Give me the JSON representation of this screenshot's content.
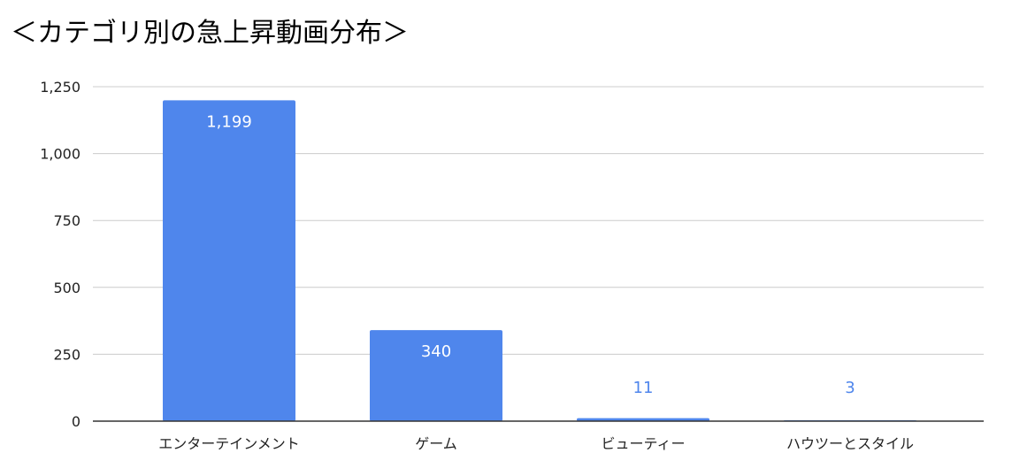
{
  "chart_data": {
    "type": "bar",
    "title": "＜カテゴリ別の急上昇動画分布＞",
    "categories": [
      "エンターテインメント",
      "ゲーム",
      "ビューティー",
      "ハウツーとスタイル"
    ],
    "values": [
      1199,
      340,
      11,
      3
    ],
    "value_labels": [
      "1,199",
      "340",
      "11",
      "3"
    ],
    "y_ticks": [
      0,
      250,
      500,
      750,
      1000,
      1250
    ],
    "y_tick_labels": [
      "0",
      "250",
      "500",
      "750",
      "1,000",
      "1,250"
    ],
    "ylim": [
      0,
      1250
    ],
    "xlabel": "",
    "ylabel": "",
    "grid": true,
    "legend": "none",
    "colors": {
      "bar": "#4f86ec",
      "label_inside": "#ffffff",
      "label_outside": "#4f86ec",
      "gridline": "#cccccc",
      "axis": "#333333",
      "text": "#222222"
    }
  }
}
